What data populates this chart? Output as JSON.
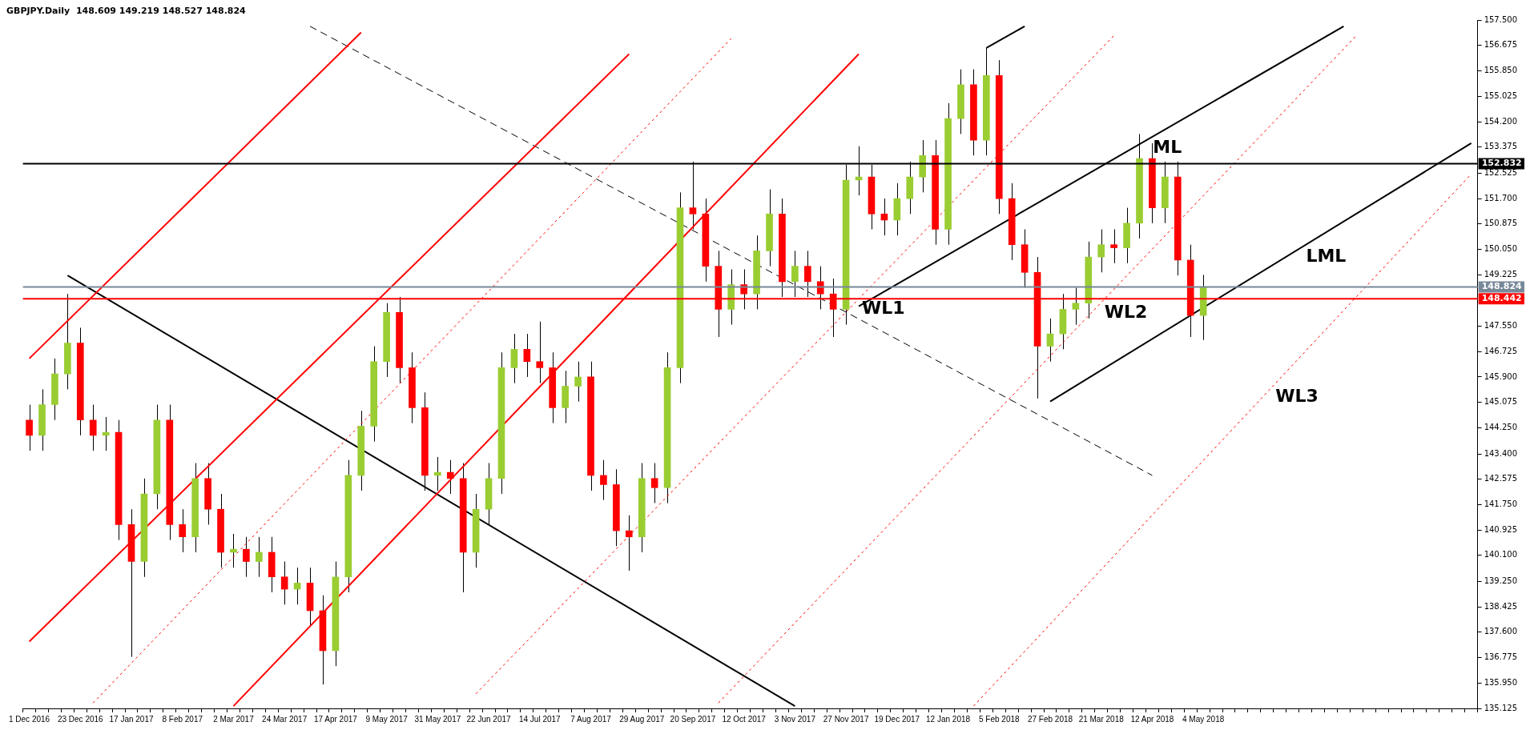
{
  "chart_data": {
    "type": "candlestick",
    "title": "GBPJPY.Daily  148.609 149.219 148.527 148.824",
    "categories": [
      "1 Dec 2016",
      null,
      null,
      null,
      "23 Dec 2016",
      null,
      null,
      null,
      "17 Jan 2017",
      null,
      null,
      null,
      "8 Feb 2017",
      null,
      null,
      null,
      "2 Mar 2017",
      null,
      null,
      null,
      "24 Mar 2017",
      null,
      null,
      null,
      "17 Apr 2017",
      null,
      null,
      null,
      "9 May 2017",
      null,
      null,
      null,
      "31 May 2017",
      null,
      null,
      null,
      "22 Jun 2017",
      null,
      null,
      null,
      "14 Jul 2017",
      null,
      null,
      null,
      "7 Aug 2017",
      null,
      null,
      null,
      "29 Aug 2017",
      null,
      null,
      null,
      "20 Sep 2017",
      null,
      null,
      null,
      "12 Oct 2017",
      null,
      null,
      null,
      "3 Nov 2017",
      null,
      null,
      null,
      "27 Nov 2017",
      null,
      null,
      null,
      "19 Dec 2017",
      null,
      null,
      null,
      "12 Jan 2018",
      null,
      null,
      null,
      "5 Feb 2018",
      null,
      null,
      null,
      "27 Feb 2018",
      null,
      null,
      null,
      "21 Mar 2018",
      null,
      null,
      null,
      "12 Apr 2018",
      null,
      null,
      null,
      "4 May 2018",
      null,
      null,
      null,
      null,
      null,
      null,
      null,
      null,
      null,
      null,
      null,
      null,
      null,
      null,
      null,
      null,
      null,
      null,
      null,
      null,
      null
    ],
    "ohlc": [
      [
        144.5,
        145.0,
        143.5,
        144.0
      ],
      [
        144.0,
        145.5,
        143.5,
        145.0
      ],
      [
        145.0,
        146.5,
        144.5,
        146.0
      ],
      [
        146.0,
        148.6,
        145.5,
        147.0
      ],
      [
        147.0,
        147.5,
        144.0,
        144.5
      ],
      [
        144.5,
        145.0,
        143.5,
        144.0
      ],
      [
        144.0,
        144.6,
        143.5,
        144.1
      ],
      [
        144.1,
        144.5,
        140.6,
        141.1
      ],
      [
        141.1,
        141.6,
        136.8,
        139.9
      ],
      [
        139.9,
        142.6,
        139.4,
        142.1
      ],
      [
        142.1,
        145.0,
        141.6,
        144.5
      ],
      [
        144.5,
        145.0,
        140.6,
        141.1
      ],
      [
        141.1,
        141.6,
        140.2,
        140.7
      ],
      [
        140.7,
        143.1,
        140.2,
        142.6
      ],
      [
        142.6,
        143.1,
        141.1,
        141.6
      ],
      [
        141.6,
        142.1,
        139.7,
        140.2
      ],
      [
        140.2,
        140.8,
        139.7,
        140.3
      ],
      [
        140.3,
        140.7,
        139.4,
        139.9
      ],
      [
        139.9,
        140.7,
        139.4,
        140.2
      ],
      [
        140.2,
        140.7,
        138.9,
        139.4
      ],
      [
        139.4,
        139.9,
        138.5,
        139.0
      ],
      [
        139.0,
        139.7,
        138.5,
        139.2
      ],
      [
        139.2,
        139.7,
        137.8,
        138.3
      ],
      [
        138.3,
        138.8,
        135.9,
        137.0
      ],
      [
        137.0,
        139.9,
        136.5,
        139.4
      ],
      [
        139.4,
        143.2,
        138.9,
        142.7
      ],
      [
        142.7,
        144.8,
        142.2,
        144.3
      ],
      [
        144.3,
        146.9,
        143.8,
        146.4
      ],
      [
        146.4,
        148.3,
        145.9,
        148.0
      ],
      [
        148.0,
        148.5,
        145.7,
        146.2
      ],
      [
        146.2,
        146.7,
        144.4,
        144.9
      ],
      [
        144.9,
        145.4,
        142.2,
        142.7
      ],
      [
        142.7,
        143.3,
        142.2,
        142.8
      ],
      [
        142.8,
        143.2,
        142.1,
        142.6
      ],
      [
        142.6,
        143.1,
        138.9,
        140.2
      ],
      [
        140.2,
        142.1,
        139.7,
        141.6
      ],
      [
        141.6,
        143.1,
        141.1,
        142.6
      ],
      [
        142.6,
        146.7,
        142.1,
        146.2
      ],
      [
        146.2,
        147.3,
        145.7,
        146.8
      ],
      [
        146.8,
        147.3,
        145.9,
        146.4
      ],
      [
        146.4,
        147.7,
        145.7,
        146.2
      ],
      [
        146.2,
        146.7,
        144.4,
        144.9
      ],
      [
        144.9,
        146.1,
        144.4,
        145.6
      ],
      [
        145.6,
        146.4,
        145.1,
        145.9
      ],
      [
        145.9,
        146.4,
        142.2,
        142.7
      ],
      [
        142.7,
        143.2,
        141.9,
        142.4
      ],
      [
        142.4,
        142.9,
        140.4,
        140.9
      ],
      [
        140.9,
        141.4,
        139.6,
        140.7
      ],
      [
        140.7,
        143.1,
        140.2,
        142.6
      ],
      [
        142.6,
        143.1,
        141.8,
        142.3
      ],
      [
        142.3,
        146.7,
        141.8,
        146.2
      ],
      [
        146.2,
        151.9,
        145.7,
        151.4
      ],
      [
        151.4,
        152.9,
        150.7,
        151.2
      ],
      [
        151.2,
        151.7,
        149.0,
        149.5
      ],
      [
        149.5,
        150.0,
        147.2,
        148.1
      ],
      [
        148.1,
        149.4,
        147.6,
        148.9
      ],
      [
        148.9,
        149.4,
        148.1,
        148.6
      ],
      [
        148.6,
        150.5,
        148.1,
        150.0
      ],
      [
        150.0,
        152.0,
        149.5,
        151.2
      ],
      [
        151.2,
        151.7,
        148.5,
        149.0
      ],
      [
        149.0,
        150.0,
        148.5,
        149.5
      ],
      [
        149.5,
        150.0,
        148.5,
        149.0
      ],
      [
        149.0,
        149.5,
        148.1,
        148.6
      ],
      [
        148.6,
        149.1,
        147.2,
        148.1
      ],
      [
        148.1,
        152.8,
        147.6,
        152.3
      ],
      [
        152.3,
        153.4,
        151.8,
        152.4
      ],
      [
        152.4,
        152.8,
        150.7,
        151.2
      ],
      [
        151.2,
        151.7,
        150.5,
        151.0
      ],
      [
        151.0,
        152.2,
        150.5,
        151.7
      ],
      [
        151.7,
        152.9,
        151.2,
        152.4
      ],
      [
        152.4,
        153.6,
        151.9,
        153.1
      ],
      [
        153.1,
        153.6,
        150.2,
        150.7
      ],
      [
        150.7,
        154.8,
        150.2,
        154.3
      ],
      [
        154.3,
        155.9,
        153.8,
        155.4
      ],
      [
        155.4,
        155.9,
        153.1,
        153.6
      ],
      [
        153.6,
        156.6,
        153.1,
        155.7
      ],
      [
        155.7,
        156.2,
        151.2,
        151.7
      ],
      [
        151.7,
        152.2,
        149.7,
        150.2
      ],
      [
        150.2,
        150.7,
        148.8,
        149.3
      ],
      [
        149.3,
        149.8,
        145.2,
        146.9
      ],
      [
        146.9,
        147.8,
        146.4,
        147.3
      ],
      [
        147.3,
        148.6,
        146.8,
        148.1
      ],
      [
        148.1,
        148.8,
        147.6,
        148.3
      ],
      [
        148.3,
        150.3,
        147.8,
        149.8
      ],
      [
        149.8,
        150.7,
        149.3,
        150.2
      ],
      [
        150.2,
        150.7,
        149.6,
        150.1
      ],
      [
        150.1,
        151.4,
        149.6,
        150.9
      ],
      [
        150.9,
        153.8,
        150.4,
        153.0
      ],
      [
        153.0,
        153.5,
        150.9,
        151.4
      ],
      [
        151.4,
        152.9,
        150.9,
        152.4
      ],
      [
        152.4,
        152.9,
        149.2,
        149.7
      ],
      [
        149.7,
        150.2,
        147.2,
        147.9
      ],
      [
        147.9,
        149.219,
        147.1,
        148.824
      ],
      null,
      null,
      null,
      null,
      null,
      null,
      null,
      null,
      null,
      null,
      null,
      null,
      null,
      null,
      null,
      null,
      null,
      null,
      null,
      null,
      null
    ],
    "colors": [
      "#ff0000",
      "#9acd32",
      "#9acd32",
      "#9acd32",
      "#ff0000",
      "#ff0000",
      "#9acd32",
      "#ff0000",
      "#ff0000",
      "#9acd32",
      "#9acd32",
      "#ff0000",
      "#ff0000",
      "#9acd32",
      "#ff0000",
      "#ff0000",
      "#9acd32",
      "#ff0000",
      "#9acd32",
      "#ff0000",
      "#ff0000",
      "#9acd32",
      "#ff0000",
      "#ff0000",
      "#9acd32",
      "#9acd32",
      "#9acd32",
      "#9acd32",
      "#9acd32",
      "#ff0000",
      "#ff0000",
      "#ff0000",
      "#9acd32",
      "#ff0000",
      "#ff0000",
      "#9acd32",
      "#9acd32",
      "#9acd32",
      "#9acd32",
      "#ff0000",
      "#ff0000",
      "#ff0000",
      "#9acd32",
      "#9acd32",
      "#ff0000",
      "#ff0000",
      "#ff0000",
      "#ff0000",
      "#9acd32",
      "#ff0000",
      "#9acd32",
      "#9acd32",
      "#ff0000",
      "#ff0000",
      "#ff0000",
      "#9acd32",
      "#ff0000",
      "#9acd32",
      "#9acd32",
      "#ff0000",
      "#9acd32",
      "#ff0000",
      "#ff0000",
      "#ff0000",
      "#9acd32",
      "#9acd32",
      "#ff0000",
      "#ff0000",
      "#9acd32",
      "#9acd32",
      "#9acd32",
      "#ff0000",
      "#9acd32",
      "#9acd32",
      "#ff0000",
      "#9acd32",
      "#ff0000",
      "#ff0000",
      "#ff0000",
      "#ff0000",
      "#9acd32",
      "#9acd32",
      "#9acd32",
      "#9acd32",
      "#9acd32",
      "#ff0000",
      "#9acd32",
      "#9acd32",
      "#ff0000",
      "#9acd32",
      "#ff0000",
      "#ff0000",
      "#9acd32",
      null,
      null,
      null,
      null,
      null,
      null,
      null,
      null,
      null,
      null,
      null,
      null,
      null,
      null,
      null,
      null,
      null,
      null,
      null,
      null,
      null
    ],
    "series": [
      {
        "type": "line",
        "color": "#ff0000",
        "values": [
          146.5,
          null,
          null,
          null,
          null,
          null,
          null,
          null,
          null,
          null,
          null,
          null,
          null,
          null,
          null,
          null,
          null,
          null,
          null,
          null,
          null,
          null,
          null,
          null,
          null,
          null,
          157.1,
          null,
          null,
          null,
          null,
          null,
          null,
          null,
          null,
          null,
          null,
          null,
          null,
          null,
          null,
          null,
          null,
          null,
          null,
          null,
          null,
          null,
          null,
          null,
          null,
          null,
          null,
          null,
          null,
          null,
          null,
          null,
          null,
          null,
          null,
          null,
          null,
          null,
          null,
          null,
          null,
          null,
          null,
          null,
          null,
          null,
          null,
          null,
          null,
          null,
          null,
          null,
          null,
          null,
          null,
          null,
          null,
          null,
          null,
          null,
          null,
          null,
          null,
          null,
          null,
          null,
          null,
          null,
          null,
          null,
          null,
          null,
          null,
          null,
          null,
          null,
          null,
          null,
          null,
          null,
          null,
          null,
          null,
          null,
          null,
          null,
          null,
          null
        ]
      },
      {
        "type": "line",
        "color": "#ff0000",
        "values": [
          137.3,
          null,
          null,
          null,
          null,
          null,
          null,
          null,
          null,
          null,
          null,
          null,
          null,
          null,
          null,
          null,
          null,
          null,
          null,
          null,
          null,
          null,
          null,
          null,
          null,
          null,
          null,
          null,
          null,
          null,
          null,
          null,
          null,
          null,
          null,
          null,
          null,
          null,
          null,
          null,
          null,
          null,
          null,
          null,
          null,
          null,
          null,
          156.4,
          null,
          null,
          null,
          null,
          null,
          null,
          null,
          null,
          null,
          null,
          null,
          null,
          null,
          null,
          null,
          null,
          null,
          null,
          null,
          null,
          null,
          null,
          null,
          null,
          null,
          null,
          null,
          null,
          null,
          null,
          null,
          null,
          null,
          null,
          null,
          null,
          null,
          null,
          null,
          null,
          null,
          null,
          null,
          null,
          null,
          null,
          null,
          null,
          null,
          null,
          null,
          null,
          null,
          null,
          null,
          null,
          null,
          null,
          null,
          null,
          null,
          null,
          null,
          null,
          null,
          null
        ]
      },
      {
        "type": "line",
        "color": "#ff0000",
        "values": [
          null,
          null,
          null,
          null,
          null,
          null,
          null,
          null,
          null,
          null,
          null,
          null,
          null,
          null,
          null,
          null,
          135.2,
          null,
          null,
          null,
          null,
          null,
          null,
          null,
          null,
          null,
          null,
          null,
          null,
          null,
          null,
          null,
          null,
          null,
          null,
          null,
          null,
          null,
          null,
          null,
          null,
          null,
          null,
          null,
          null,
          null,
          null,
          null,
          null,
          null,
          null,
          null,
          null,
          null,
          null,
          null,
          null,
          null,
          null,
          null,
          null,
          null,
          null,
          null,
          null,
          156.4,
          null,
          null,
          null,
          null,
          null,
          null,
          null,
          null,
          null,
          null,
          null,
          null,
          null,
          null,
          null,
          null,
          null,
          null,
          null,
          null,
          null,
          null,
          null,
          null,
          null,
          null,
          null,
          null,
          null,
          null,
          null,
          null,
          null,
          null,
          null,
          null,
          null,
          null,
          null,
          null,
          null,
          null,
          null,
          null,
          null,
          null,
          null,
          null
        ]
      },
      {
        "type": "line",
        "color": "#ff0000",
        "line_style": "dotted",
        "values": [
          null,
          null,
          null,
          null,
          null,
          135.3,
          null,
          null,
          null,
          null,
          null,
          null,
          null,
          null,
          null,
          null,
          null,
          null,
          null,
          null,
          null,
          null,
          null,
          null,
          null,
          null,
          null,
          null,
          null,
          null,
          null,
          null,
          null,
          null,
          null,
          null,
          null,
          null,
          null,
          null,
          null,
          null,
          null,
          null,
          null,
          null,
          null,
          null,
          null,
          null,
          null,
          null,
          null,
          null,
          null,
          156.9,
          null,
          null,
          null,
          null,
          null,
          null,
          null,
          null,
          null,
          null,
          null,
          null,
          null,
          null,
          null,
          null,
          null,
          null,
          null,
          null,
          null,
          null,
          null,
          null,
          null,
          null,
          null,
          null,
          null,
          null,
          null,
          null,
          null,
          null,
          null,
          null,
          null,
          null,
          null,
          null,
          null,
          null,
          null,
          null,
          null,
          null,
          null,
          null,
          null,
          null,
          null,
          null,
          null,
          null,
          null,
          null,
          null,
          null
        ]
      },
      {
        "type": "line",
        "name": "WL1",
        "color": "#ff0000",
        "line_style": "dotted",
        "values": [
          null,
          null,
          null,
          null,
          null,
          null,
          null,
          null,
          null,
          null,
          null,
          null,
          null,
          null,
          null,
          null,
          null,
          null,
          null,
          null,
          null,
          null,
          null,
          null,
          null,
          null,
          null,
          null,
          null,
          null,
          null,
          null,
          null,
          null,
          null,
          135.6,
          null,
          null,
          null,
          null,
          null,
          null,
          null,
          null,
          null,
          null,
          null,
          null,
          null,
          null,
          null,
          null,
          null,
          null,
          null,
          null,
          null,
          null,
          null,
          null,
          null,
          null,
          null,
          null,
          null,
          null,
          null,
          null,
          null,
          null,
          null,
          null,
          null,
          null,
          null,
          null,
          null,
          null,
          null,
          null,
          null,
          null,
          null,
          null,
          null,
          157.0,
          null,
          null,
          null,
          null,
          null,
          null,
          null,
          null,
          null,
          null,
          null,
          null,
          null,
          null,
          null,
          null,
          null,
          null,
          null,
          null,
          null,
          null,
          null,
          null,
          null,
          null,
          null,
          null
        ]
      },
      {
        "type": "line",
        "name": "WL2",
        "color": "#ff0000",
        "line_style": "dotted",
        "values": [
          null,
          null,
          null,
          null,
          null,
          null,
          null,
          null,
          null,
          null,
          null,
          null,
          null,
          null,
          null,
          null,
          null,
          null,
          null,
          null,
          null,
          null,
          null,
          null,
          null,
          null,
          null,
          null,
          null,
          null,
          null,
          null,
          null,
          null,
          null,
          null,
          null,
          null,
          null,
          null,
          null,
          null,
          null,
          null,
          null,
          null,
          null,
          null,
          null,
          null,
          null,
          null,
          null,
          null,
          135.3,
          null,
          null,
          null,
          null,
          null,
          null,
          null,
          null,
          null,
          null,
          null,
          null,
          null,
          null,
          null,
          null,
          null,
          null,
          null,
          null,
          null,
          null,
          null,
          null,
          null,
          null,
          null,
          null,
          null,
          null,
          null,
          null,
          null,
          null,
          null,
          null,
          null,
          null,
          null,
          null,
          null,
          null,
          null,
          null,
          null,
          null,
          null,
          null,
          null,
          157.0,
          null,
          null,
          null,
          null,
          null,
          null,
          null,
          null,
          null
        ]
      },
      {
        "type": "line",
        "name": "WL3",
        "color": "#ff0000",
        "line_style": "dotted",
        "values": [
          null,
          null,
          null,
          null,
          null,
          null,
          null,
          null,
          null,
          null,
          null,
          null,
          null,
          null,
          null,
          null,
          null,
          null,
          null,
          null,
          null,
          null,
          null,
          null,
          null,
          null,
          null,
          null,
          null,
          null,
          null,
          null,
          null,
          null,
          null,
          null,
          null,
          null,
          null,
          null,
          null,
          null,
          null,
          null,
          null,
          null,
          null,
          null,
          null,
          null,
          null,
          null,
          null,
          null,
          null,
          null,
          null,
          null,
          null,
          null,
          null,
          null,
          null,
          null,
          null,
          null,
          null,
          null,
          null,
          null,
          null,
          null,
          null,
          null,
          135.2,
          null,
          null,
          null,
          null,
          null,
          null,
          null,
          null,
          null,
          null,
          null,
          null,
          null,
          null,
          null,
          null,
          null,
          null,
          null,
          null,
          null,
          null,
          null,
          null,
          null,
          null,
          null,
          null,
          null,
          null,
          null,
          null,
          null,
          null,
          null,
          null,
          null,
          null,
          152.5
        ]
      },
      {
        "type": "line",
        "color": "#000000",
        "values": [
          null,
          null,
          null,
          149.2,
          null,
          null,
          null,
          null,
          null,
          null,
          null,
          null,
          null,
          null,
          null,
          null,
          null,
          null,
          null,
          null,
          null,
          null,
          null,
          null,
          null,
          null,
          null,
          null,
          null,
          null,
          null,
          null,
          null,
          null,
          null,
          null,
          null,
          null,
          null,
          null,
          null,
          null,
          null,
          null,
          null,
          null,
          null,
          null,
          null,
          null,
          null,
          null,
          null,
          null,
          null,
          null,
          null,
          null,
          null,
          null,
          135.2,
          null,
          null,
          null,
          null,
          null,
          null,
          null,
          null,
          null,
          null,
          null,
          null,
          null,
          null,
          null,
          null,
          null,
          null,
          null,
          null,
          null,
          null,
          null,
          null,
          null,
          null,
          null,
          null,
          null,
          null,
          null,
          null,
          null,
          null,
          null,
          null,
          null,
          null,
          null,
          null,
          null,
          null,
          null,
          null,
          null,
          null,
          null,
          null,
          null,
          null,
          null,
          null,
          null
        ]
      },
      {
        "type": "line",
        "color": "#000000",
        "line_style": "dashed",
        "values": [
          null,
          null,
          null,
          null,
          null,
          null,
          null,
          null,
          null,
          null,
          null,
          null,
          null,
          null,
          null,
          null,
          null,
          null,
          null,
          null,
          null,
          null,
          157.3,
          null,
          null,
          null,
          null,
          null,
          null,
          null,
          null,
          null,
          null,
          null,
          null,
          null,
          null,
          null,
          null,
          null,
          null,
          null,
          null,
          null,
          null,
          null,
          null,
          null,
          null,
          null,
          null,
          null,
          null,
          null,
          null,
          null,
          null,
          null,
          null,
          null,
          null,
          null,
          null,
          null,
          null,
          null,
          null,
          null,
          null,
          null,
          null,
          null,
          null,
          null,
          null,
          null,
          null,
          null,
          null,
          null,
          null,
          null,
          null,
          null,
          null,
          null,
          null,
          null,
          142.7,
          null,
          null,
          null,
          null,
          null,
          null,
          null,
          null,
          null,
          null,
          null,
          null,
          null,
          null,
          null,
          null,
          null,
          null,
          null,
          null,
          null,
          null,
          null,
          null,
          null
        ]
      },
      {
        "type": "line",
        "name": "ML",
        "color": "#000000",
        "values": [
          null,
          null,
          null,
          null,
          null,
          null,
          null,
          null,
          null,
          null,
          null,
          null,
          null,
          null,
          null,
          null,
          null,
          null,
          null,
          null,
          null,
          null,
          null,
          null,
          null,
          null,
          null,
          null,
          null,
          null,
          null,
          null,
          null,
          null,
          null,
          null,
          null,
          null,
          null,
          null,
          null,
          null,
          null,
          null,
          null,
          null,
          null,
          null,
          null,
          null,
          null,
          null,
          null,
          null,
          null,
          null,
          null,
          null,
          null,
          null,
          null,
          null,
          null,
          null,
          null,
          148.2,
          null,
          null,
          null,
          null,
          null,
          null,
          null,
          null,
          null,
          null,
          null,
          null,
          null,
          null,
          null,
          null,
          null,
          null,
          null,
          null,
          null,
          null,
          null,
          null,
          null,
          null,
          null,
          null,
          null,
          null,
          null,
          null,
          null,
          null,
          null,
          null,
          null,
          157.3,
          null,
          null,
          null,
          null,
          null,
          null,
          null,
          null,
          null,
          null
        ]
      },
      {
        "type": "line",
        "name": "LML",
        "color": "#000000",
        "values": [
          null,
          null,
          null,
          null,
          null,
          null,
          null,
          null,
          null,
          null,
          null,
          null,
          null,
          null,
          null,
          null,
          null,
          null,
          null,
          null,
          null,
          null,
          null,
          null,
          null,
          null,
          null,
          null,
          null,
          null,
          null,
          null,
          null,
          null,
          null,
          null,
          null,
          null,
          null,
          null,
          null,
          null,
          null,
          null,
          null,
          null,
          null,
          null,
          null,
          null,
          null,
          null,
          null,
          null,
          null,
          null,
          null,
          null,
          null,
          null,
          null,
          null,
          null,
          null,
          null,
          null,
          null,
          null,
          null,
          null,
          null,
          null,
          null,
          null,
          null,
          null,
          null,
          null,
          null,
          null,
          145.1,
          null,
          null,
          null,
          null,
          null,
          null,
          null,
          null,
          null,
          null,
          null,
          null,
          null,
          null,
          null,
          null,
          null,
          null,
          null,
          null,
          null,
          null,
          null,
          null,
          null,
          null,
          null,
          null,
          null,
          null,
          null,
          null,
          153.5
        ]
      },
      {
        "type": "line",
        "color": "#000000",
        "values": [
          null,
          null,
          null,
          null,
          null,
          null,
          null,
          null,
          null,
          null,
          null,
          null,
          null,
          null,
          null,
          null,
          null,
          null,
          null,
          null,
          null,
          null,
          null,
          null,
          null,
          null,
          null,
          null,
          null,
          null,
          null,
          null,
          null,
          null,
          null,
          null,
          null,
          null,
          null,
          null,
          null,
          null,
          null,
          null,
          null,
          null,
          null,
          null,
          null,
          null,
          null,
          null,
          null,
          null,
          null,
          null,
          null,
          null,
          null,
          null,
          null,
          null,
          null,
          null,
          null,
          null,
          null,
          null,
          null,
          null,
          null,
          null,
          null,
          null,
          null,
          156.6,
          null,
          null,
          157.3,
          null,
          null,
          null,
          null,
          null,
          null,
          null,
          null,
          null,
          null,
          null,
          null,
          null,
          null,
          null,
          null,
          null,
          null,
          null,
          null,
          null,
          null,
          null,
          null,
          null,
          null,
          null,
          null,
          null,
          null,
          null,
          null,
          null,
          null,
          null
        ]
      }
    ],
    "ref_lines": [
      {
        "axis": "y",
        "value": 152.832,
        "label": "152.832",
        "color": "#000000"
      },
      {
        "axis": "y",
        "value": 148.824,
        "label": "148.824",
        "color": "#778899"
      },
      {
        "axis": "y",
        "value": 148.442,
        "label": "148.442",
        "color": "#ff0000"
      }
    ],
    "ylim": [
      135.125,
      157.5
    ],
    "yticks": [
      {
        "value": 135.125,
        "label": "135.125"
      },
      {
        "value": 135.95,
        "label": "135.950"
      },
      {
        "value": 136.775,
        "label": "136.775"
      },
      {
        "value": 137.6,
        "label": "137.600"
      },
      {
        "value": 138.425,
        "label": "138.425"
      },
      {
        "value": 139.25,
        "label": "139.250"
      },
      {
        "value": 140.1,
        "label": "140.100"
      },
      {
        "value": 140.925,
        "label": "140.925"
      },
      {
        "value": 141.75,
        "label": "141.750"
      },
      {
        "value": 142.575,
        "label": "142.575"
      },
      {
        "value": 143.4,
        "label": "143.400"
      },
      {
        "value": 144.25,
        "label": "144.250"
      },
      {
        "value": 145.075,
        "label": "145.075"
      },
      {
        "value": 145.9,
        "label": "145.900"
      },
      {
        "value": 146.725,
        "label": "146.725"
      },
      {
        "value": 147.55,
        "label": "147.550"
      },
      {
        "value": 149.225,
        "label": "149.225"
      },
      {
        "value": 150.05,
        "label": "150.050"
      },
      {
        "value": 150.875,
        "label": "150.875"
      },
      {
        "value": 151.7,
        "label": "151.700"
      },
      {
        "value": 152.525,
        "label": "152.525"
      },
      {
        "value": 153.375,
        "label": "153.375"
      },
      {
        "value": 154.2,
        "label": "154.200"
      },
      {
        "value": 155.025,
        "label": "155.025"
      },
      {
        "value": 155.85,
        "label": "155.850"
      },
      {
        "value": 156.675,
        "label": "156.675"
      },
      {
        "value": 157.5,
        "label": "157.500"
      }
    ],
    "legend": false
  }
}
